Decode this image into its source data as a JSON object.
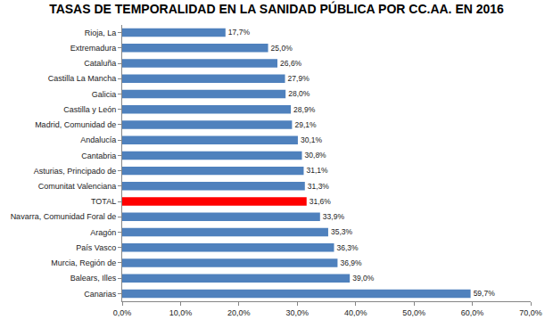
{
  "chart_data": {
    "type": "bar",
    "orientation": "horizontal",
    "title": "TASAS DE TEMPORALIDAD EN LA SANIDAD PÚBLICA POR CC.AA. EN 2016",
    "categories": [
      "Rioja, La",
      "Extremadura",
      "Cataluña",
      "Castilla La Mancha",
      "Galicia",
      "Castilla y León",
      "Madrid, Comunidad de",
      "Andalucía",
      "Cantabria",
      "Asturias, Principado de",
      "Comunitat Valenciana",
      "TOTAL",
      "Navarra, Comunidad Foral de",
      "Aragón",
      "País Vasco",
      "Murcia, Región de",
      "Balears, Illes",
      "Canarias"
    ],
    "values": [
      17.7,
      25.0,
      26.6,
      27.9,
      28.0,
      28.9,
      29.1,
      30.1,
      30.8,
      31.1,
      31.3,
      31.6,
      33.9,
      35.3,
      36.3,
      36.9,
      39.0,
      59.7
    ],
    "value_labels": [
      "17,7%",
      "25,0%",
      "26,6%",
      "27,9%",
      "28,0%",
      "28,9%",
      "29,1%",
      "30,1%",
      "30,8%",
      "31,1%",
      "31,3%",
      "31,6%",
      "33,9%",
      "35,3%",
      "36,3%",
      "36,9%",
      "39,0%",
      "59,7%"
    ],
    "colors": [
      "#4f81bd",
      "#4f81bd",
      "#4f81bd",
      "#4f81bd",
      "#4f81bd",
      "#4f81bd",
      "#4f81bd",
      "#4f81bd",
      "#4f81bd",
      "#4f81bd",
      "#4f81bd",
      "#ff0000",
      "#4f81bd",
      "#4f81bd",
      "#4f81bd",
      "#4f81bd",
      "#4f81bd",
      "#4f81bd"
    ],
    "data_labels": true,
    "grid": false,
    "xlim": [
      0,
      70
    ],
    "xticks": [
      {
        "value": 0,
        "label": "0,0%"
      },
      {
        "value": 10,
        "label": "10,0%"
      },
      {
        "value": 20,
        "label": "20,0%"
      },
      {
        "value": 30,
        "label": "30,0%"
      },
      {
        "value": 40,
        "label": "40,0%"
      },
      {
        "value": 50,
        "label": "50,0%"
      },
      {
        "value": 60,
        "label": "60,0%"
      },
      {
        "value": 70,
        "label": "70,0%"
      }
    ]
  }
}
